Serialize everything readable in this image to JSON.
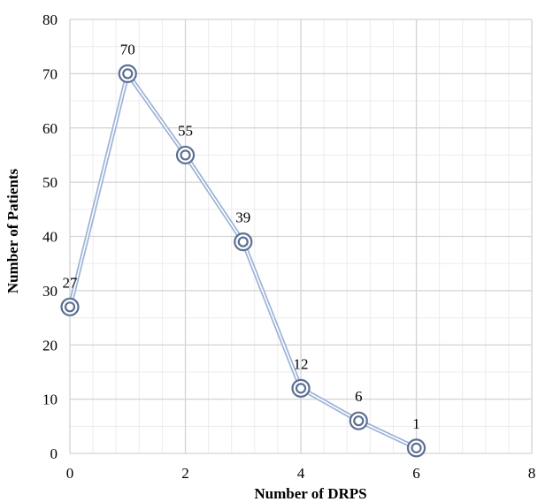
{
  "chart_data": {
    "type": "scatter",
    "title": "",
    "xlabel": "Number of DRPS",
    "ylabel": "Number of Patients",
    "xlim": [
      0,
      8
    ],
    "ylim": [
      0,
      80
    ],
    "x_major_ticks": [
      0,
      2,
      4,
      6,
      8
    ],
    "y_major_ticks": [
      0,
      10,
      20,
      30,
      40,
      50,
      60,
      70,
      80
    ],
    "grid": "major and minor",
    "legend": "none",
    "series": [
      {
        "points": [
          {
            "x": 0,
            "y": 27
          },
          {
            "x": 1,
            "y": 70
          },
          {
            "x": 2,
            "y": 55
          },
          {
            "x": 3,
            "y": 39
          },
          {
            "x": 4,
            "y": 12
          },
          {
            "x": 5,
            "y": 6
          },
          {
            "x": 6,
            "y": 1
          }
        ],
        "data_labels": [
          "27",
          "70",
          "55",
          "39",
          "12",
          "6",
          "1"
        ],
        "line_color": "#9db3d6",
        "marker_color": "#5b6f92"
      }
    ],
    "colors": {
      "major_grid": "#d4d4d4",
      "minor_grid": "#ececec",
      "axis": "#d4d4d4"
    }
  }
}
